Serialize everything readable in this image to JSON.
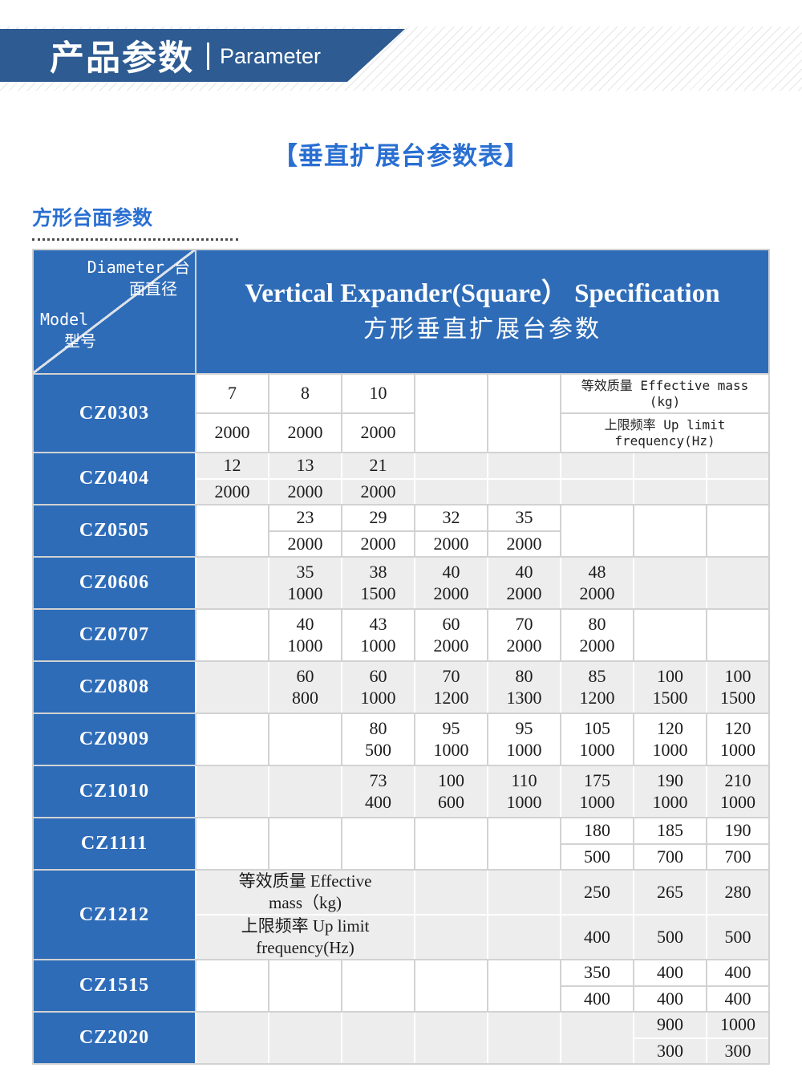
{
  "banner": {
    "title_cn": "产品参数",
    "title_en": "Parameter"
  },
  "page": {
    "table_title": "【垂直扩展台参数表】",
    "section_label": "方形台面参数"
  },
  "colors": {
    "banner_blue": "#2d5b92",
    "accent_blue": "#2a6fd2",
    "table_blue": "#2e6cb8",
    "row_gray": "#ededed",
    "grid_line": "#d2d2d2"
  },
  "table": {
    "corner": {
      "top_line1": "Diameter 台",
      "top_line2": "面直径",
      "bottom_line1": "Model",
      "bottom_line2": "型号"
    },
    "header": {
      "line1": "Vertical Expander(Square） Specification",
      "line2": "方形垂直扩展台参数"
    },
    "rows": [
      {
        "model": "CZ0303",
        "shade": "white",
        "size": "tall1",
        "cells": [
          {
            "col": 1,
            "pos": "top",
            "lines": [
              "7"
            ]
          },
          {
            "col": 1,
            "pos": "bot",
            "lines": [
              "2000"
            ]
          },
          {
            "col": 2,
            "pos": "top",
            "lines": [
              "8"
            ]
          },
          {
            "col": 2,
            "pos": "bot",
            "lines": [
              "2000"
            ]
          },
          {
            "col": 3,
            "pos": "top",
            "lines": [
              "10"
            ]
          },
          {
            "col": 3,
            "pos": "bot",
            "lines": [
              "2000"
            ]
          },
          {
            "col": 4,
            "pos": "full",
            "lines": []
          },
          {
            "col": 5,
            "pos": "full",
            "lines": []
          },
          {
            "col": 6,
            "span": 3,
            "pos": "top",
            "style": "mono",
            "lines": [
              "等效质量 Effective mass",
              "(kg)"
            ]
          },
          {
            "col": 6,
            "span": 3,
            "pos": "bot",
            "style": "mono",
            "lines": [
              "上限频率 Up limit",
              "frequency(Hz)"
            ]
          }
        ]
      },
      {
        "model": "CZ0404",
        "shade": "gray",
        "cells": [
          {
            "col": 1,
            "pos": "top",
            "lines": [
              "12"
            ]
          },
          {
            "col": 1,
            "pos": "bot",
            "lines": [
              "2000"
            ]
          },
          {
            "col": 2,
            "pos": "top",
            "lines": [
              "13"
            ]
          },
          {
            "col": 2,
            "pos": "bot",
            "lines": [
              "2000"
            ]
          },
          {
            "col": 3,
            "pos": "top",
            "lines": [
              "21"
            ]
          },
          {
            "col": 3,
            "pos": "bot",
            "lines": [
              "2000"
            ]
          },
          {
            "col": 4,
            "pos": "top",
            "lines": []
          },
          {
            "col": 4,
            "pos": "bot",
            "lines": []
          },
          {
            "col": 5,
            "pos": "top",
            "lines": []
          },
          {
            "col": 5,
            "pos": "bot",
            "lines": []
          },
          {
            "col": 6,
            "pos": "top",
            "lines": []
          },
          {
            "col": 6,
            "pos": "bot",
            "lines": []
          },
          {
            "col": 7,
            "pos": "top",
            "lines": []
          },
          {
            "col": 7,
            "pos": "bot",
            "lines": []
          },
          {
            "col": 8,
            "pos": "top",
            "lines": []
          },
          {
            "col": 8,
            "pos": "bot",
            "lines": []
          }
        ]
      },
      {
        "model": "CZ0505",
        "shade": "white",
        "cells": [
          {
            "col": 1,
            "pos": "full",
            "lines": []
          },
          {
            "col": 2,
            "pos": "top",
            "lines": [
              "23"
            ]
          },
          {
            "col": 2,
            "pos": "bot",
            "lines": [
              "2000"
            ]
          },
          {
            "col": 3,
            "pos": "top",
            "lines": [
              "29"
            ]
          },
          {
            "col": 3,
            "pos": "bot",
            "lines": [
              "2000"
            ]
          },
          {
            "col": 4,
            "pos": "top",
            "lines": [
              "32"
            ]
          },
          {
            "col": 4,
            "pos": "bot",
            "lines": [
              "2000"
            ]
          },
          {
            "col": 5,
            "pos": "top",
            "lines": [
              "35"
            ]
          },
          {
            "col": 5,
            "pos": "bot",
            "lines": [
              "2000"
            ]
          },
          {
            "col": 6,
            "pos": "full",
            "lines": []
          },
          {
            "col": 7,
            "pos": "full",
            "lines": []
          },
          {
            "col": 8,
            "pos": "full",
            "lines": []
          }
        ]
      },
      {
        "model": "CZ0606",
        "shade": "gray",
        "cells": [
          {
            "col": 1,
            "pos": "full",
            "lines": []
          },
          {
            "col": 2,
            "pos": "full",
            "lines": [
              "35",
              "1000"
            ]
          },
          {
            "col": 3,
            "pos": "full",
            "lines": [
              "38",
              "1500"
            ]
          },
          {
            "col": 4,
            "pos": "full",
            "lines": [
              "40",
              "2000"
            ]
          },
          {
            "col": 5,
            "pos": "full",
            "lines": [
              "40",
              "2000"
            ]
          },
          {
            "col": 6,
            "pos": "full",
            "lines": [
              "48",
              "2000"
            ]
          },
          {
            "col": 7,
            "pos": "full",
            "lines": []
          },
          {
            "col": 8,
            "pos": "full",
            "lines": []
          }
        ]
      },
      {
        "model": "CZ0707",
        "shade": "white",
        "cells": [
          {
            "col": 1,
            "pos": "full",
            "lines": []
          },
          {
            "col": 2,
            "pos": "full",
            "lines": [
              "40",
              "1000"
            ]
          },
          {
            "col": 3,
            "pos": "full",
            "lines": [
              "43",
              "1000"
            ]
          },
          {
            "col": 4,
            "pos": "full",
            "lines": [
              "60",
              "2000"
            ]
          },
          {
            "col": 5,
            "pos": "full",
            "lines": [
              "70",
              "2000"
            ]
          },
          {
            "col": 6,
            "pos": "full",
            "lines": [
              "80",
              "2000"
            ]
          },
          {
            "col": 7,
            "pos": "full",
            "lines": []
          },
          {
            "col": 8,
            "pos": "full",
            "lines": []
          }
        ]
      },
      {
        "model": "CZ0808",
        "shade": "gray",
        "cells": [
          {
            "col": 1,
            "pos": "full",
            "lines": []
          },
          {
            "col": 2,
            "pos": "full",
            "lines": [
              "60",
              "800"
            ]
          },
          {
            "col": 3,
            "pos": "full",
            "lines": [
              "60",
              "1000"
            ]
          },
          {
            "col": 4,
            "pos": "full",
            "lines": [
              "70",
              "1200"
            ]
          },
          {
            "col": 5,
            "pos": "full",
            "lines": [
              "80",
              "1300"
            ]
          },
          {
            "col": 6,
            "pos": "full",
            "lines": [
              "85",
              "1200"
            ]
          },
          {
            "col": 7,
            "pos": "full",
            "lines": [
              "100",
              "1500"
            ]
          },
          {
            "col": 8,
            "pos": "full",
            "lines": [
              "100",
              "1500"
            ]
          }
        ]
      },
      {
        "model": "CZ0909",
        "shade": "white",
        "cells": [
          {
            "col": 1,
            "pos": "full",
            "lines": []
          },
          {
            "col": 2,
            "pos": "full",
            "lines": []
          },
          {
            "col": 3,
            "pos": "full",
            "lines": [
              "80",
              "500"
            ]
          },
          {
            "col": 4,
            "pos": "full",
            "lines": [
              "95",
              "1000"
            ]
          },
          {
            "col": 5,
            "pos": "full",
            "lines": [
              "95",
              "1000"
            ]
          },
          {
            "col": 6,
            "pos": "full",
            "lines": [
              "105",
              "1000"
            ]
          },
          {
            "col": 7,
            "pos": "full",
            "lines": [
              "120",
              "1000"
            ]
          },
          {
            "col": 8,
            "pos": "full",
            "lines": [
              "120",
              "1000"
            ]
          }
        ]
      },
      {
        "model": "CZ1010",
        "shade": "gray",
        "cells": [
          {
            "col": 1,
            "pos": "full",
            "lines": []
          },
          {
            "col": 2,
            "pos": "full",
            "lines": []
          },
          {
            "col": 3,
            "pos": "full",
            "lines": [
              "73",
              "400"
            ]
          },
          {
            "col": 4,
            "pos": "full",
            "lines": [
              "100",
              "600"
            ]
          },
          {
            "col": 5,
            "pos": "full",
            "lines": [
              "110",
              "1000"
            ]
          },
          {
            "col": 6,
            "pos": "full",
            "lines": [
              "175",
              "1000"
            ]
          },
          {
            "col": 7,
            "pos": "full",
            "lines": [
              "190",
              "1000"
            ]
          },
          {
            "col": 8,
            "pos": "full",
            "lines": [
              "210",
              "1000"
            ]
          }
        ]
      },
      {
        "model": "CZ1111",
        "shade": "white",
        "cells": [
          {
            "col": 1,
            "pos": "full",
            "lines": []
          },
          {
            "col": 2,
            "pos": "full",
            "lines": []
          },
          {
            "col": 3,
            "pos": "full",
            "lines": []
          },
          {
            "col": 4,
            "pos": "full",
            "lines": []
          },
          {
            "col": 5,
            "pos": "full",
            "lines": []
          },
          {
            "col": 6,
            "pos": "top",
            "lines": [
              "180"
            ]
          },
          {
            "col": 6,
            "pos": "bot",
            "lines": [
              "500"
            ]
          },
          {
            "col": 7,
            "pos": "top",
            "lines": [
              "185"
            ]
          },
          {
            "col": 7,
            "pos": "bot",
            "lines": [
              "700"
            ]
          },
          {
            "col": 8,
            "pos": "top",
            "lines": [
              "190"
            ]
          },
          {
            "col": 8,
            "pos": "bot",
            "lines": [
              "700"
            ]
          }
        ]
      },
      {
        "model": "CZ1212",
        "shade": "gray",
        "size": "tall2",
        "cells": [
          {
            "col": 1,
            "span": 3,
            "pos": "top",
            "style": "label",
            "lines": [
              "等效质量 Effective",
              "mass（kg)"
            ]
          },
          {
            "col": 1,
            "span": 3,
            "pos": "bot",
            "style": "label",
            "lines": [
              "上限频率 Up limit",
              "frequency(Hz)"
            ]
          },
          {
            "col": 4,
            "pos": "top",
            "lines": []
          },
          {
            "col": 4,
            "pos": "bot",
            "lines": []
          },
          {
            "col": 5,
            "pos": "top",
            "lines": []
          },
          {
            "col": 5,
            "pos": "bot",
            "lines": []
          },
          {
            "col": 6,
            "pos": "top",
            "lines": [
              "250"
            ]
          },
          {
            "col": 6,
            "pos": "bot",
            "lines": [
              "400"
            ]
          },
          {
            "col": 7,
            "pos": "top",
            "lines": [
              "265"
            ]
          },
          {
            "col": 7,
            "pos": "bot",
            "lines": [
              "500"
            ]
          },
          {
            "col": 8,
            "pos": "top",
            "lines": [
              "280"
            ]
          },
          {
            "col": 8,
            "pos": "bot",
            "lines": [
              "500"
            ]
          }
        ]
      },
      {
        "model": "CZ1515",
        "shade": "white",
        "cells": [
          {
            "col": 1,
            "pos": "full",
            "lines": []
          },
          {
            "col": 2,
            "pos": "full",
            "lines": []
          },
          {
            "col": 3,
            "pos": "full",
            "lines": []
          },
          {
            "col": 4,
            "pos": "full",
            "lines": []
          },
          {
            "col": 5,
            "pos": "full",
            "lines": []
          },
          {
            "col": 6,
            "pos": "top",
            "lines": [
              "350"
            ]
          },
          {
            "col": 6,
            "pos": "bot",
            "lines": [
              "400"
            ]
          },
          {
            "col": 7,
            "pos": "top",
            "lines": [
              "400"
            ]
          },
          {
            "col": 7,
            "pos": "bot",
            "lines": [
              "400"
            ]
          },
          {
            "col": 8,
            "pos": "top",
            "lines": [
              "400"
            ]
          },
          {
            "col": 8,
            "pos": "bot",
            "lines": [
              "400"
            ]
          }
        ]
      },
      {
        "model": "CZ2020",
        "shade": "gray",
        "cells": [
          {
            "col": 1,
            "pos": "full",
            "lines": []
          },
          {
            "col": 2,
            "pos": "full",
            "lines": []
          },
          {
            "col": 3,
            "pos": "full",
            "lines": []
          },
          {
            "col": 4,
            "pos": "full",
            "lines": []
          },
          {
            "col": 5,
            "pos": "full",
            "lines": []
          },
          {
            "col": 6,
            "pos": "full",
            "lines": []
          },
          {
            "col": 7,
            "pos": "top",
            "lines": [
              "900"
            ]
          },
          {
            "col": 7,
            "pos": "bot",
            "lines": [
              "300"
            ]
          },
          {
            "col": 8,
            "pos": "top",
            "lines": [
              "1000"
            ]
          },
          {
            "col": 8,
            "pos": "bot",
            "lines": [
              "300"
            ]
          }
        ]
      }
    ]
  }
}
